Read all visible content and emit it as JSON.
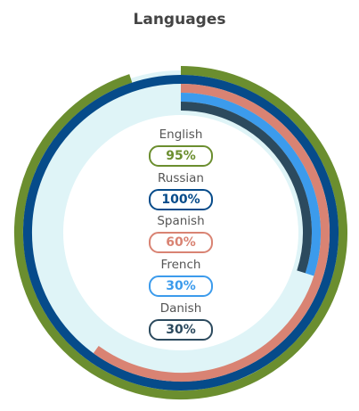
{
  "chart_data": {
    "type": "radial-bar",
    "title": "Languages",
    "track_color": "#dff4f7",
    "series": [
      {
        "name": "English",
        "value": 95,
        "label": "95%",
        "color": "#6b8e2f"
      },
      {
        "name": "Russian",
        "value": 100,
        "label": "100%",
        "color": "#064b8a"
      },
      {
        "name": "Spanish",
        "value": 60,
        "label": "60%",
        "color": "#d98373"
      },
      {
        "name": "French",
        "value": 30,
        "label": "30%",
        "color": "#3c9bec"
      },
      {
        "name": "Danish",
        "value": 30,
        "label": "30%",
        "color": "#2c4a5e"
      }
    ]
  }
}
